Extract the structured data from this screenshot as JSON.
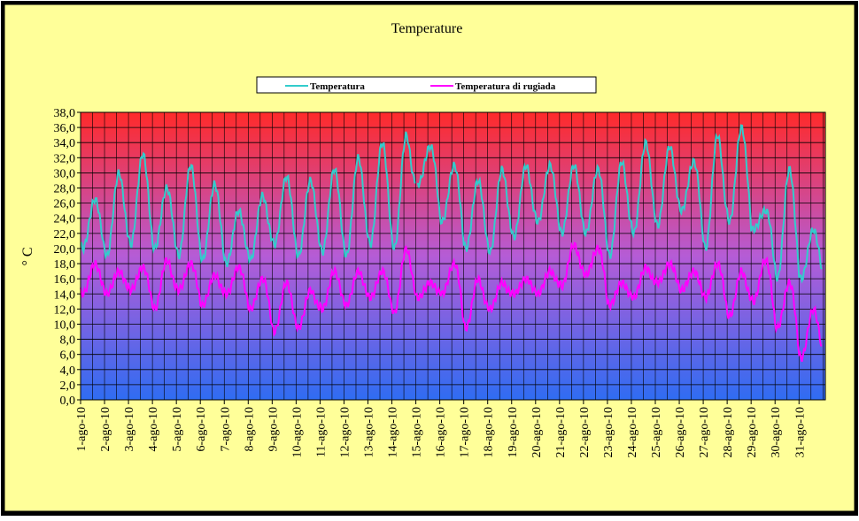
{
  "chart_data": {
    "type": "line",
    "title": "Temperature",
    "xlabel": "",
    "ylabel": "° C",
    "ylim": [
      0,
      38
    ],
    "y_ticks": [
      "0,0",
      "2,0",
      "4,0",
      "6,0",
      "8,0",
      "10,0",
      "12,0",
      "14,0",
      "16,0",
      "18,0",
      "20,0",
      "22,0",
      "24,0",
      "26,0",
      "28,0",
      "30,0",
      "32,0",
      "34,0",
      "36,0",
      "38,0"
    ],
    "categories": [
      "1-ago-10",
      "2-ago-10",
      "3-ago-10",
      "4-ago-10",
      "5-ago-10",
      "6-ago-10",
      "7-ago-10",
      "8-ago-10",
      "9-ago-10",
      "10-ago-10",
      "11-ago-10",
      "12-ago-10",
      "13-ago-10",
      "14-ago-10",
      "15-ago-10",
      "16-ago-10",
      "17-ago-10",
      "18-ago-10",
      "19-ago-10",
      "20-ago-10",
      "21-ago-10",
      "22-ago-10",
      "23-ago-10",
      "24-ago-10",
      "25-ago-10",
      "26-ago-10",
      "27-ago-10",
      "28-ago-10",
      "29-ago-10",
      "30-ago-10",
      "31-ago-10"
    ],
    "grid": true,
    "legend_position": "top-center",
    "series": [
      {
        "name": "Temperatura",
        "color": "#33cccc",
        "daily_min": [
          20.0,
          19.0,
          20.5,
          20.0,
          19.0,
          18.5,
          18.0,
          18.5,
          20.5,
          19.0,
          19.5,
          19.0,
          20.5,
          20.0,
          28.5,
          23.5,
          20.0,
          19.5,
          21.5,
          23.5,
          22.0,
          22.0,
          19.0,
          22.0,
          23.0,
          25.0,
          20.0,
          23.5,
          22.5,
          16.0,
          16.0
        ],
        "daily_max": [
          26.5,
          30.0,
          32.5,
          28.0,
          31.0,
          28.5,
          25.0,
          27.0,
          29.5,
          29.0,
          30.5,
          32.0,
          34.0,
          35.0,
          33.5,
          31.0,
          29.0,
          30.5,
          31.0,
          31.0,
          31.0,
          30.5,
          31.5,
          34.0,
          33.5,
          31.5,
          35.0,
          36.0,
          25.0,
          30.5,
          22.5
        ]
      },
      {
        "name": "Temperatura di rugiada",
        "color": "#ff00ff",
        "daily_min": [
          14.0,
          14.0,
          14.5,
          12.0,
          14.5,
          12.5,
          14.0,
          12.0,
          9.0,
          9.5,
          12.0,
          12.5,
          13.5,
          11.5,
          13.5,
          14.0,
          9.5,
          12.0,
          14.0,
          14.0,
          15.0,
          16.5,
          12.5,
          13.5,
          15.5,
          14.5,
          13.5,
          11.0,
          13.0,
          9.5,
          5.5
        ],
        "daily_max": [
          18.0,
          17.0,
          17.5,
          18.5,
          18.0,
          16.5,
          17.5,
          16.0,
          15.5,
          14.5,
          17.0,
          17.0,
          17.0,
          20.0,
          15.5,
          18.0,
          16.0,
          15.5,
          16.0,
          17.0,
          20.5,
          20.0,
          15.5,
          17.5,
          18.0,
          17.0,
          18.0,
          17.0,
          18.5,
          15.5,
          12.0
        ]
      }
    ]
  }
}
